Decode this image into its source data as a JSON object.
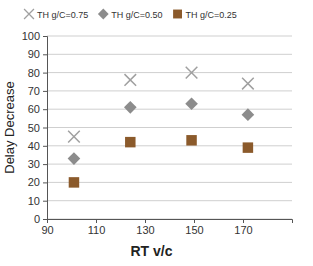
{
  "chart_data": {
    "type": "scatter",
    "x_label": "RT v/c",
    "y_label": "Delay Decrease",
    "x": [
      101,
      124,
      149,
      172
    ],
    "xlim": [
      90,
      190
    ],
    "xticks": [
      90,
      110,
      130,
      150,
      170
    ],
    "ylim": [
      0,
      100
    ],
    "yticks": [
      0,
      10,
      20,
      30,
      40,
      50,
      60,
      70,
      80,
      90,
      100
    ],
    "grid": true,
    "legend": "top",
    "series": [
      {
        "name": "TH g/C=0.75",
        "color": "#a0a0a0",
        "marker": "x",
        "values": [
          45,
          76,
          80,
          74
        ]
      },
      {
        "name": "TH g/C=0.50",
        "color": "#8c8c8c",
        "marker": "diamond",
        "values": [
          33,
          61,
          63,
          57
        ]
      },
      {
        "name": "TH g/C=0.25",
        "color": "#8b5a2b",
        "marker": "square",
        "values": [
          20,
          42,
          43,
          39
        ]
      }
    ]
  }
}
